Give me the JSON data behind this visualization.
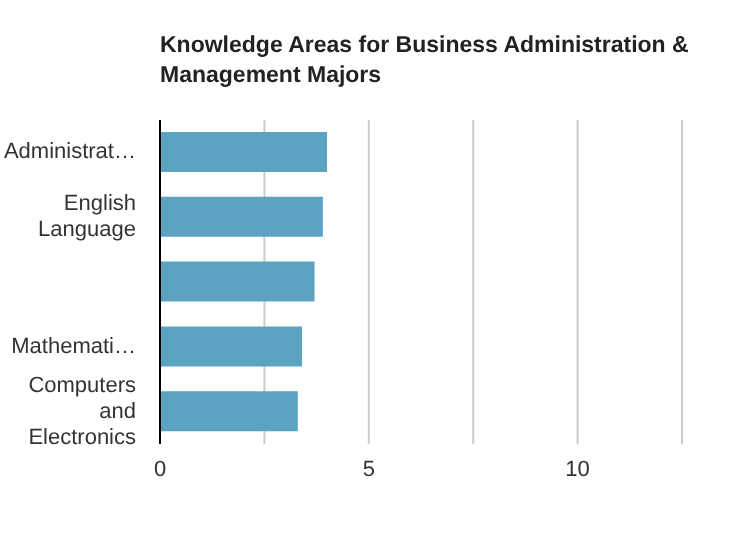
{
  "chart_data": {
    "type": "bar",
    "orientation": "horizontal",
    "title": "Knowledge Areas for Business Administration & Management Majors",
    "categories": [
      "Administrat…",
      "English Language",
      null,
      "Mathemati…",
      "Computers and Electronics"
    ],
    "values": [
      4.0,
      3.9,
      3.7,
      3.4,
      3.3
    ],
    "color": "#5ba3c0",
    "xlim": [
      0,
      12.5
    ],
    "xticks": [
      0,
      {
        "value": 2.5,
        "label": null
      },
      5,
      {
        "value": 7.5,
        "label": null
      },
      10,
      {
        "value": 12.5,
        "label": null
      }
    ],
    "grid": "x"
  }
}
